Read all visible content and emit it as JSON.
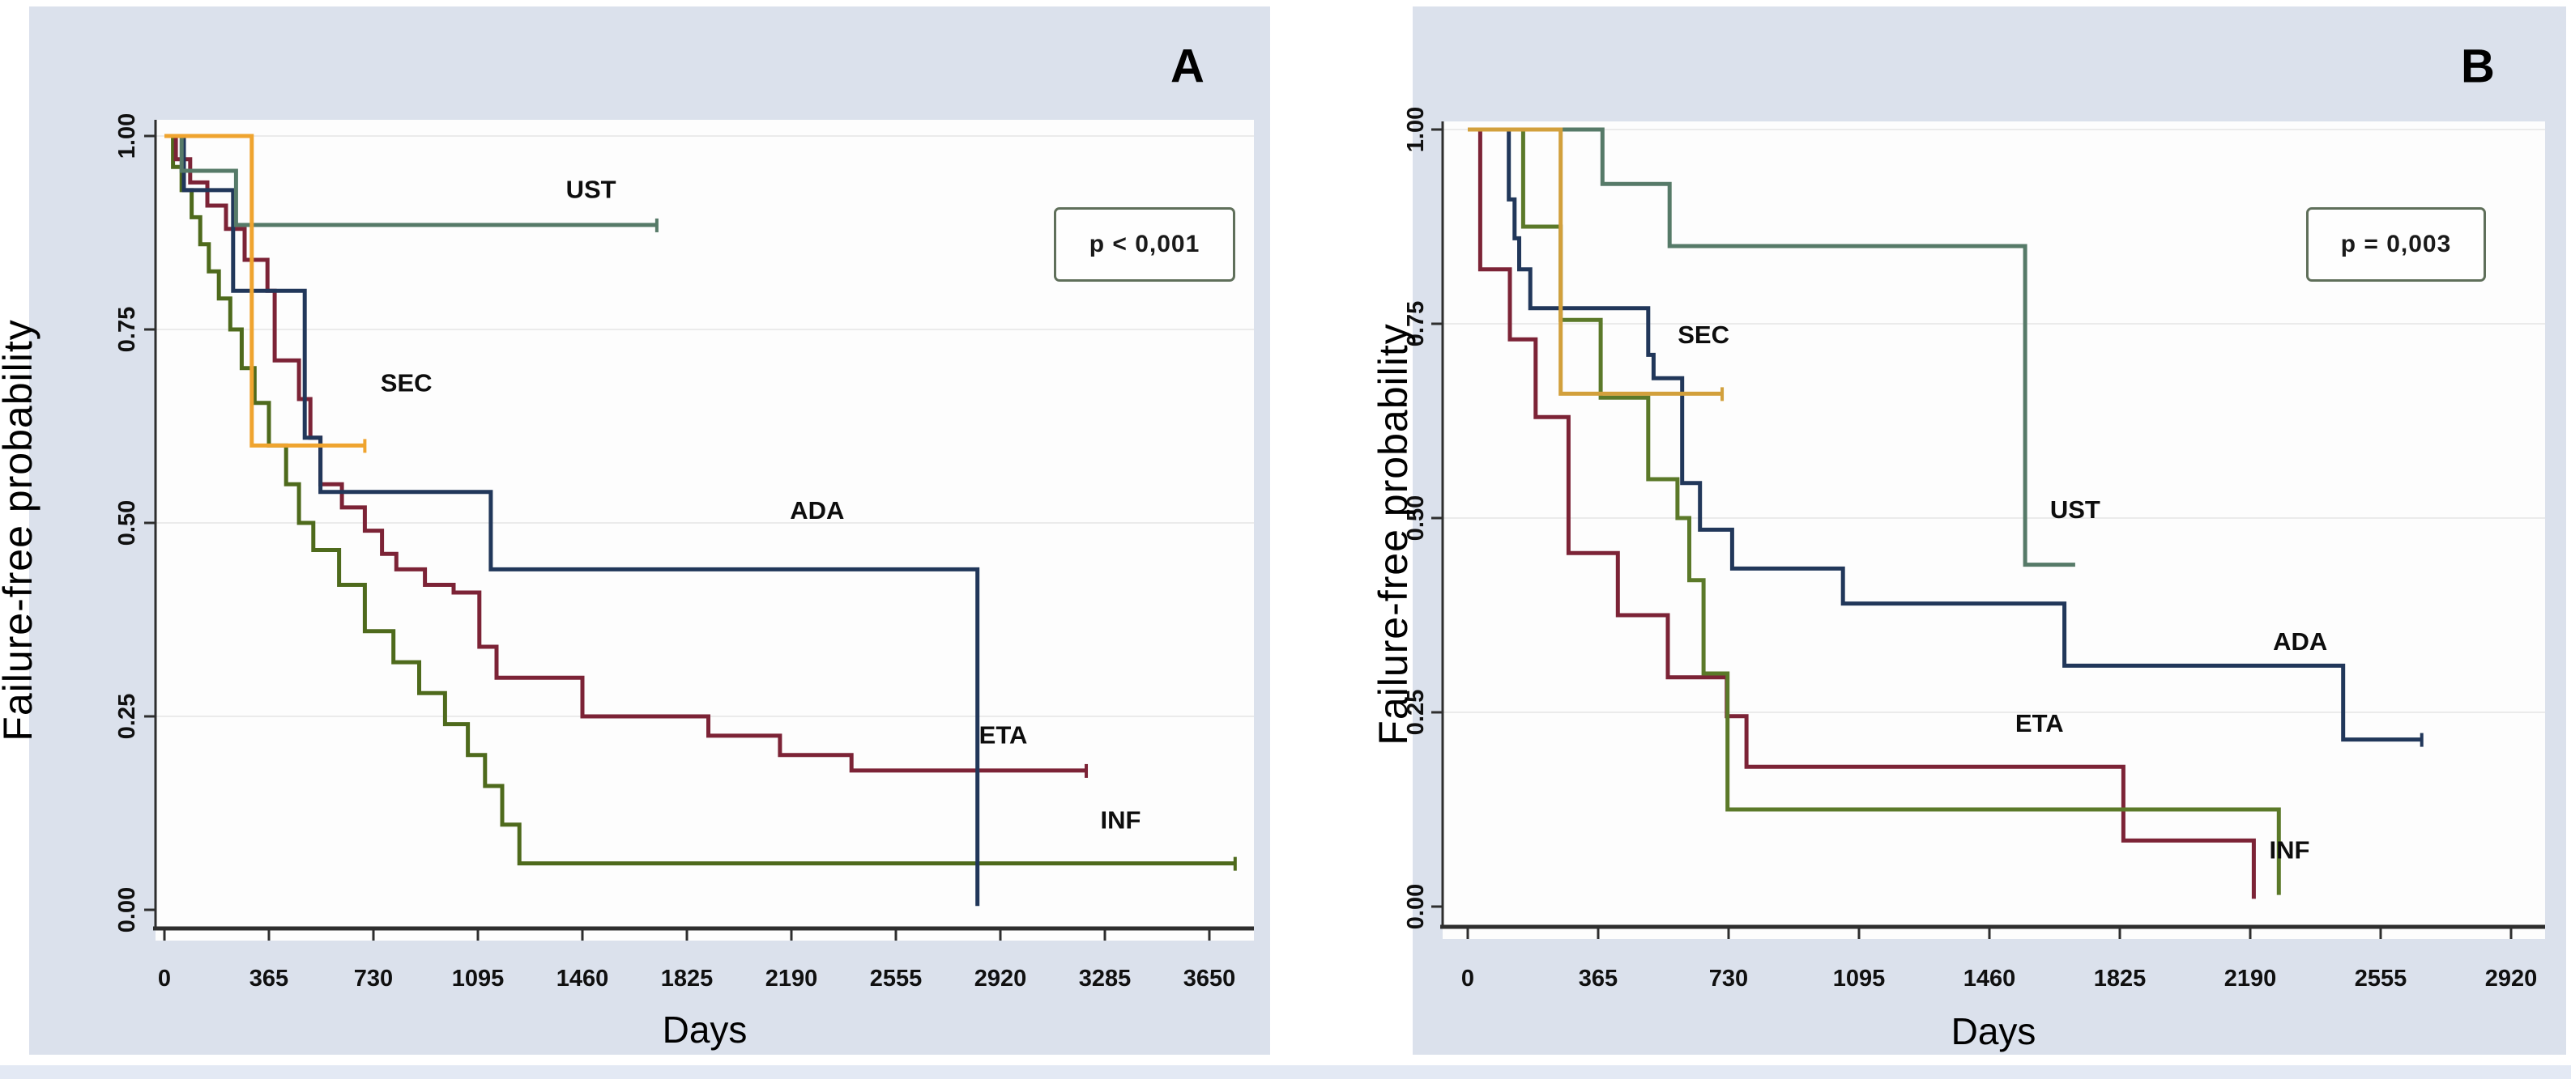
{
  "figure": {
    "ylabel": "Failure-free probability",
    "xlabel": "Days",
    "ui_colors": {
      "card_background": "#DBE1EC",
      "plot_background": "#FDFDFD",
      "gridline": "#EBEBEB",
      "axis": "#2E2E2E",
      "bottom_strip": "#E3E9F4"
    }
  },
  "chart_data": [
    {
      "panel": "A",
      "letter": "A",
      "p_value_label": "p < 0,001",
      "type": "line",
      "subtype": "kaplan-meier-step",
      "title": "",
      "xlabel": "Days",
      "ylabel": "Failure-free probability",
      "xlim": [
        0,
        3800
      ],
      "ylim": [
        0,
        1
      ],
      "grid": true,
      "grid_values": [
        1.0,
        0.75,
        0.5,
        0.25
      ],
      "x_ticks": [
        0,
        365,
        730,
        1095,
        1460,
        1825,
        2190,
        2555,
        2920,
        3285,
        3650
      ],
      "y_tick_labels": [
        "1.00",
        "0.75",
        "0.50",
        "0.25",
        "0.00"
      ],
      "y_tick_values": [
        1.0,
        0.75,
        0.5,
        0.25,
        0.0
      ],
      "legend_position": "inline-labels",
      "series": [
        {
          "name": "INF",
          "color": "#4E6A1C",
          "end_tick": true,
          "label": {
            "text": "INF",
            "day": 3340,
            "prob": 0.105
          },
          "points": [
            [
              0,
              1.0
            ],
            [
              30,
              0.96
            ],
            [
              60,
              0.93
            ],
            [
              95,
              0.895
            ],
            [
              125,
              0.86
            ],
            [
              155,
              0.825
            ],
            [
              190,
              0.79
            ],
            [
              230,
              0.75
            ],
            [
              270,
              0.7
            ],
            [
              315,
              0.655
            ],
            [
              365,
              0.6
            ],
            [
              425,
              0.55
            ],
            [
              470,
              0.5
            ],
            [
              520,
              0.465
            ],
            [
              610,
              0.42
            ],
            [
              700,
              0.36
            ],
            [
              800,
              0.32
            ],
            [
              890,
              0.28
            ],
            [
              980,
              0.24
            ],
            [
              1060,
              0.2
            ],
            [
              1120,
              0.16
            ],
            [
              1180,
              0.11
            ],
            [
              1240,
              0.06
            ],
            [
              3740,
              0.06
            ]
          ]
        },
        {
          "name": "ETA",
          "color": "#7C2336",
          "end_tick": true,
          "label": {
            "text": "ETA",
            "day": 2930,
            "prob": 0.215
          },
          "points": [
            [
              0,
              1.0
            ],
            [
              40,
              0.97
            ],
            [
              90,
              0.94
            ],
            [
              150,
              0.91
            ],
            [
              215,
              0.88
            ],
            [
              280,
              0.84
            ],
            [
              360,
              0.8
            ],
            [
              385,
              0.71
            ],
            [
              470,
              0.66
            ],
            [
              510,
              0.61
            ],
            [
              545,
              0.55
            ],
            [
              620,
              0.52
            ],
            [
              700,
              0.49
            ],
            [
              760,
              0.46
            ],
            [
              810,
              0.44
            ],
            [
              910,
              0.42
            ],
            [
              1010,
              0.41
            ],
            [
              1100,
              0.34
            ],
            [
              1160,
              0.3
            ],
            [
              1460,
              0.25
            ],
            [
              1900,
              0.225
            ],
            [
              2150,
              0.2
            ],
            [
              2400,
              0.18
            ],
            [
              3220,
              0.18
            ]
          ]
        },
        {
          "name": "ADA",
          "color": "#21375A",
          "end_tick": false,
          "label": {
            "text": "ADA",
            "day": 2280,
            "prob": 0.505
          },
          "points": [
            [
              0,
              1.0
            ],
            [
              68,
              0.93
            ],
            [
              240,
              0.8
            ],
            [
              490,
              0.61
            ],
            [
              545,
              0.54
            ],
            [
              1140,
              0.44
            ],
            [
              2840,
              0.44
            ],
            [
              2840,
              0.005
            ]
          ]
        },
        {
          "name": "UST",
          "color": "#567A68",
          "end_tick": true,
          "label": {
            "text": "UST",
            "day": 1490,
            "prob": 0.92
          },
          "points": [
            [
              0,
              1.0
            ],
            [
              60,
              0.955
            ],
            [
              250,
              0.885
            ],
            [
              1720,
              0.885
            ]
          ]
        },
        {
          "name": "SEC",
          "color": "#EFA42F",
          "end_tick": true,
          "label": {
            "text": "SEC",
            "day": 845,
            "prob": 0.67
          },
          "points": [
            [
              0,
              1.0
            ],
            [
              305,
              0.6
            ],
            [
              700,
              0.6
            ]
          ]
        }
      ]
    },
    {
      "panel": "B",
      "letter": "B",
      "p_value_label": "p = 0,003",
      "type": "line",
      "subtype": "kaplan-meier-step",
      "title": "",
      "xlabel": "Days",
      "ylabel": "Failure-free probability",
      "xlim": [
        0,
        3020
      ],
      "ylim": [
        0,
        1
      ],
      "grid": true,
      "grid_values": [
        1.0,
        0.75,
        0.5,
        0.25
      ],
      "x_ticks": [
        0,
        365,
        730,
        1095,
        1460,
        1825,
        2190,
        2555,
        2920
      ],
      "y_tick_labels": [
        "1.00",
        "0.75",
        "0.50",
        "0.25",
        "0.00"
      ],
      "y_tick_values": [
        1.0,
        0.75,
        0.5,
        0.25,
        0.0
      ],
      "legend_position": "inline-labels",
      "series": [
        {
          "name": "ETA",
          "color": "#7C2336",
          "end_tick": false,
          "label": {
            "text": "ETA",
            "day": 1600,
            "prob": 0.225
          },
          "points": [
            [
              0,
              1.0
            ],
            [
              35,
              0.82
            ],
            [
              118,
              0.73
            ],
            [
              190,
              0.63
            ],
            [
              282,
              0.455
            ],
            [
              420,
              0.375
            ],
            [
              560,
              0.295
            ],
            [
              725,
              0.245
            ],
            [
              780,
              0.18
            ],
            [
              1835,
              0.085
            ],
            [
              2200,
              0.085
            ],
            [
              2200,
              0.01
            ]
          ]
        },
        {
          "name": "INF",
          "color": "#5B7929",
          "end_tick": false,
          "label": {
            "text": "INF",
            "day": 2300,
            "prob": 0.062
          },
          "points": [
            [
              0,
              1.0
            ],
            [
              155,
              0.875
            ],
            [
              260,
              0.755
            ],
            [
              372,
              0.655
            ],
            [
              505,
              0.55
            ],
            [
              587,
              0.5
            ],
            [
              620,
              0.42
            ],
            [
              660,
              0.3
            ],
            [
              727,
              0.125
            ],
            [
              2270,
              0.125
            ],
            [
              2270,
              0.015
            ]
          ]
        },
        {
          "name": "ADA",
          "color": "#21375A",
          "end_tick": true,
          "label": {
            "text": "ADA",
            "day": 2330,
            "prob": 0.33
          },
          "points": [
            [
              0,
              1.0
            ],
            [
              115,
              0.91
            ],
            [
              131,
              0.86
            ],
            [
              144,
              0.82
            ],
            [
              175,
              0.77
            ],
            [
              505,
              0.71
            ],
            [
              520,
              0.68
            ],
            [
              600,
              0.545
            ],
            [
              650,
              0.485
            ],
            [
              740,
              0.435
            ],
            [
              1050,
              0.39
            ],
            [
              1670,
              0.31
            ],
            [
              2450,
              0.215
            ],
            [
              2670,
              0.215
            ]
          ]
        },
        {
          "name": "UST",
          "color": "#567A68",
          "end_tick": false,
          "label": {
            "text": "UST",
            "day": 1700,
            "prob": 0.5
          },
          "points": [
            [
              0,
              1.0
            ],
            [
              377,
              0.93
            ],
            [
              565,
              0.85
            ],
            [
              1560,
              0.85
            ],
            [
              1560,
              0.44
            ],
            [
              1700,
              0.44
            ]
          ]
        },
        {
          "name": "SEC",
          "color": "#D2A03C",
          "end_tick": true,
          "label": {
            "text": "SEC",
            "day": 660,
            "prob": 0.725
          },
          "points": [
            [
              0,
              1.0
            ],
            [
              260,
              0.66
            ],
            [
              712,
              0.66
            ]
          ]
        }
      ]
    }
  ]
}
